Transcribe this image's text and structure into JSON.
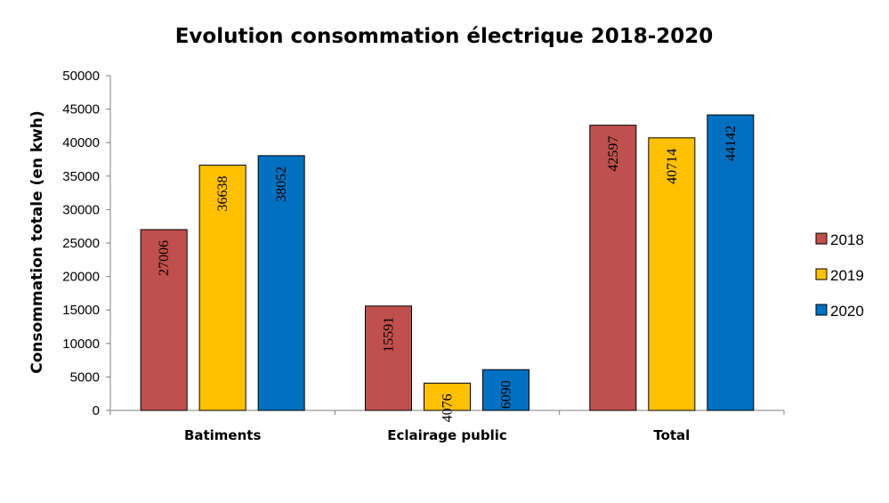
{
  "chart_data": {
    "type": "bar",
    "title": "Evolution consommation électrique 2018-2020",
    "xlabel": "",
    "ylabel": "Consommation totale (en kwh)",
    "categories": [
      "Batiments",
      "Eclairage public",
      "Total"
    ],
    "series": [
      {
        "name": "2018",
        "color": "#C0504D",
        "values": [
          27006,
          15591,
          42597
        ]
      },
      {
        "name": "2019",
        "color": "#FFC000",
        "values": [
          36638,
          4076,
          40714
        ]
      },
      {
        "name": "2020",
        "color": "#0070C0",
        "values": [
          38052,
          6090,
          44142
        ]
      }
    ],
    "ylim": [
      0,
      50000
    ],
    "yticks": [
      0,
      5000,
      10000,
      15000,
      20000,
      25000,
      30000,
      35000,
      40000,
      45000,
      50000
    ],
    "grid": false,
    "legend_position": "right",
    "data_labels": "rotated"
  }
}
